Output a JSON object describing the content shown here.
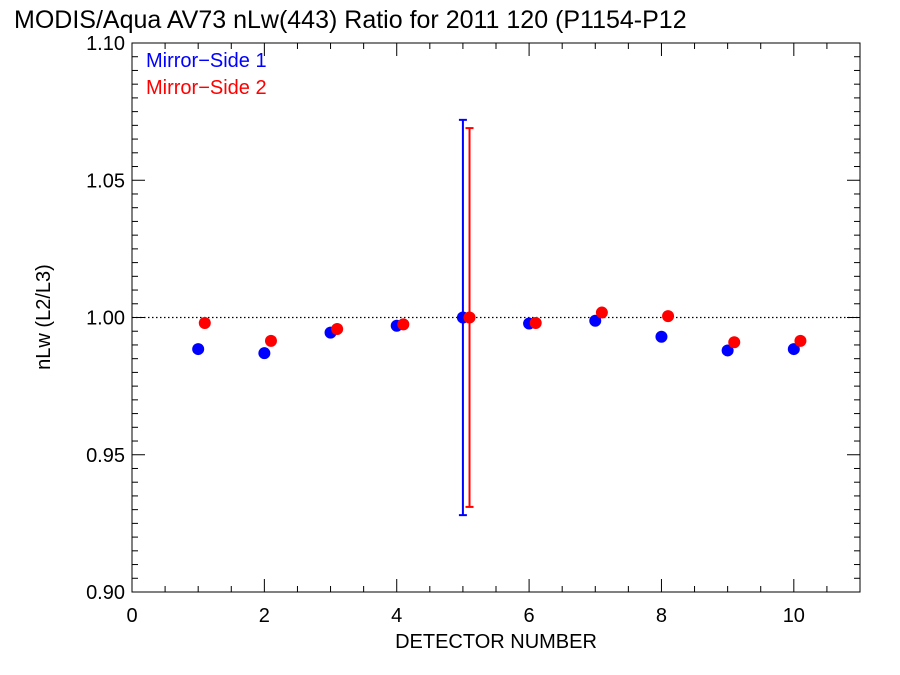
{
  "chart_data": {
    "type": "scatter",
    "title": "MODIS/Aqua AV73 nLw(443) Ratio for 2011 120 (P1154-P12",
    "xlabel": "DETECTOR NUMBER",
    "ylabel": "nLw (L2/L3)",
    "xlim": [
      0,
      11
    ],
    "ylim": [
      0.9,
      1.1
    ],
    "x_ticks": [
      0,
      2,
      4,
      6,
      8,
      10
    ],
    "x_tick_labels": [
      "0",
      "2",
      "4",
      "6",
      "8",
      "10"
    ],
    "y_ticks": [
      0.9,
      0.95,
      1.0,
      1.05,
      1.1
    ],
    "y_tick_labels": [
      "0.90",
      "0.95",
      "1.00",
      "1.05",
      "1.10"
    ],
    "reference_line": {
      "y": 1.0,
      "style": "dotted"
    },
    "grid": false,
    "legend_position": "top-left",
    "series": [
      {
        "name": "Mirror−Side 1",
        "color": "#0000ff",
        "x": [
          1,
          2,
          3,
          4,
          5,
          6,
          7,
          8,
          9,
          10
        ],
        "y": [
          0.9885,
          0.987,
          0.9945,
          0.997,
          1.0,
          0.9978,
          0.9988,
          0.993,
          0.988,
          0.9885
        ],
        "error_bar": {
          "x": 5,
          "low": 0.928,
          "high": 1.072
        }
      },
      {
        "name": "Mirror−Side 2",
        "color": "#ff0000",
        "x": [
          1.1,
          2.1,
          3.1,
          4.1,
          5.1,
          6.1,
          7.1,
          8.1,
          9.1,
          10.1
        ],
        "y": [
          0.998,
          0.9915,
          0.9958,
          0.9975,
          1.0,
          0.998,
          1.0018,
          1.0005,
          0.991,
          0.9915
        ],
        "error_bar": {
          "x": 5.1,
          "low": 0.931,
          "high": 1.069
        }
      }
    ]
  }
}
